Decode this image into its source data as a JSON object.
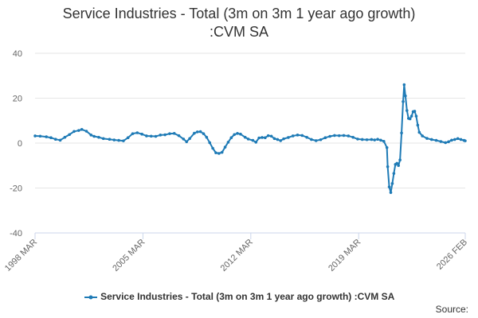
{
  "chart_data": {
    "type": "line",
    "title": "Service Industries - Total (3m on 3m 1 year ago growth) :CVM SA",
    "title_lines": [
      "Service Industries - Total (3m on 3m 1 year ago growth)",
      ":CVM SA"
    ],
    "xlabel": "",
    "ylabel": "",
    "ylim": [
      -40,
      40
    ],
    "yticks": [
      40,
      20,
      0,
      -20,
      -40
    ],
    "xlim": [
      1998.167,
      2026.083
    ],
    "xticks": [
      {
        "label": "1998 MAR",
        "value": 1998.167
      },
      {
        "label": "2005 MAR",
        "value": 2005.167
      },
      {
        "label": "2012 MAR",
        "value": 2012.167
      },
      {
        "label": "2019 MAR",
        "value": 2019.167
      },
      {
        "label": "2026 FEB",
        "value": 2026.083
      }
    ],
    "grid": "horizontal",
    "legend_position": "bottom",
    "series": [
      {
        "name": "Service Industries - Total (3m on 3m 1 year ago growth) :CVM SA",
        "color": "#1f7bb6",
        "points": [
          [
            1998.17,
            3.2
          ],
          [
            1998.5,
            3.1
          ],
          [
            1998.9,
            2.8
          ],
          [
            1999.2,
            2.4
          ],
          [
            1999.5,
            1.7
          ],
          [
            1999.8,
            1.3
          ],
          [
            2000.1,
            2.6
          ],
          [
            2000.4,
            3.8
          ],
          [
            2000.7,
            5.2
          ],
          [
            2001.0,
            5.6
          ],
          [
            2001.2,
            6.1
          ],
          [
            2001.5,
            5.3
          ],
          [
            2001.8,
            3.6
          ],
          [
            2002.0,
            3.0
          ],
          [
            2002.3,
            2.6
          ],
          [
            2002.6,
            2.0
          ],
          [
            2003.0,
            1.7
          ],
          [
            2003.3,
            1.4
          ],
          [
            2003.6,
            1.2
          ],
          [
            2003.9,
            1.0
          ],
          [
            2004.2,
            2.4
          ],
          [
            2004.5,
            4.2
          ],
          [
            2004.8,
            4.6
          ],
          [
            2005.1,
            4.0
          ],
          [
            2005.4,
            3.2
          ],
          [
            2005.7,
            3.1
          ],
          [
            2006.0,
            3.0
          ],
          [
            2006.3,
            3.6
          ],
          [
            2006.6,
            3.7
          ],
          [
            2006.9,
            4.2
          ],
          [
            2007.2,
            4.3
          ],
          [
            2007.5,
            3.3
          ],
          [
            2007.8,
            1.8
          ],
          [
            2008.0,
            0.6
          ],
          [
            2008.2,
            2.0
          ],
          [
            2008.5,
            4.4
          ],
          [
            2008.7,
            5.0
          ],
          [
            2008.9,
            5.1
          ],
          [
            2009.1,
            4.2
          ],
          [
            2009.3,
            2.6
          ],
          [
            2009.5,
            0.2
          ],
          [
            2009.7,
            -2.3
          ],
          [
            2009.9,
            -4.3
          ],
          [
            2010.1,
            -4.6
          ],
          [
            2010.3,
            -4.1
          ],
          [
            2010.5,
            -1.8
          ],
          [
            2010.7,
            0.4
          ],
          [
            2010.9,
            2.4
          ],
          [
            2011.1,
            3.8
          ],
          [
            2011.3,
            4.3
          ],
          [
            2011.5,
            4.0
          ],
          [
            2011.8,
            2.6
          ],
          [
            2012.0,
            1.8
          ],
          [
            2012.3,
            1.2
          ],
          [
            2012.5,
            0.4
          ],
          [
            2012.7,
            2.3
          ],
          [
            2012.9,
            2.5
          ],
          [
            2013.1,
            2.4
          ],
          [
            2013.3,
            3.3
          ],
          [
            2013.5,
            3.1
          ],
          [
            2013.7,
            2.0
          ],
          [
            2013.9,
            1.6
          ],
          [
            2014.1,
            1.1
          ],
          [
            2014.3,
            1.9
          ],
          [
            2014.6,
            2.5
          ],
          [
            2014.9,
            3.2
          ],
          [
            2015.2,
            3.6
          ],
          [
            2015.5,
            3.4
          ],
          [
            2015.8,
            2.6
          ],
          [
            2016.1,
            1.6
          ],
          [
            2016.4,
            1.1
          ],
          [
            2016.7,
            1.5
          ],
          [
            2017.0,
            2.4
          ],
          [
            2017.3,
            3.0
          ],
          [
            2017.6,
            3.4
          ],
          [
            2017.9,
            3.3
          ],
          [
            2018.2,
            3.4
          ],
          [
            2018.5,
            3.2
          ],
          [
            2018.8,
            2.6
          ],
          [
            2019.1,
            1.8
          ],
          [
            2019.4,
            1.6
          ],
          [
            2019.7,
            1.5
          ],
          [
            2020.0,
            1.6
          ],
          [
            2020.2,
            1.4
          ],
          [
            2020.4,
            1.7
          ],
          [
            2020.6,
            1.3
          ],
          [
            2020.8,
            0.8
          ],
          [
            2021.0,
            -2.0
          ],
          [
            2021.05,
            -10.5
          ],
          [
            2021.15,
            -19.5
          ],
          [
            2021.25,
            -22.0
          ],
          [
            2021.35,
            -18.0
          ],
          [
            2021.45,
            -13.5
          ],
          [
            2021.55,
            -9.5
          ],
          [
            2021.65,
            -9.0
          ],
          [
            2021.75,
            -10.0
          ],
          [
            2021.85,
            -7.5
          ],
          [
            2021.95,
            4.5
          ],
          [
            2022.05,
            18.5
          ],
          [
            2022.12,
            26.0
          ],
          [
            2022.2,
            21.0
          ],
          [
            2022.3,
            14.5
          ],
          [
            2022.4,
            11.0
          ],
          [
            2022.5,
            10.8
          ],
          [
            2022.6,
            12.0
          ],
          [
            2022.7,
            14.0
          ],
          [
            2022.8,
            14.2
          ],
          [
            2022.9,
            12.0
          ],
          [
            2023.0,
            8.0
          ],
          [
            2023.1,
            4.8
          ],
          [
            2023.3,
            3.2
          ],
          [
            2023.6,
            2.1
          ],
          [
            2023.9,
            1.6
          ],
          [
            2024.2,
            1.2
          ],
          [
            2024.5,
            0.7
          ],
          [
            2024.8,
            0.2
          ],
          [
            2025.0,
            0.6
          ],
          [
            2025.2,
            1.3
          ],
          [
            2025.4,
            1.6
          ],
          [
            2025.6,
            2.0
          ],
          [
            2025.8,
            1.6
          ],
          [
            2026.0,
            1.2
          ],
          [
            2026.08,
            1.0
          ]
        ]
      }
    ]
  },
  "footer": {
    "source_label": "Source:"
  }
}
